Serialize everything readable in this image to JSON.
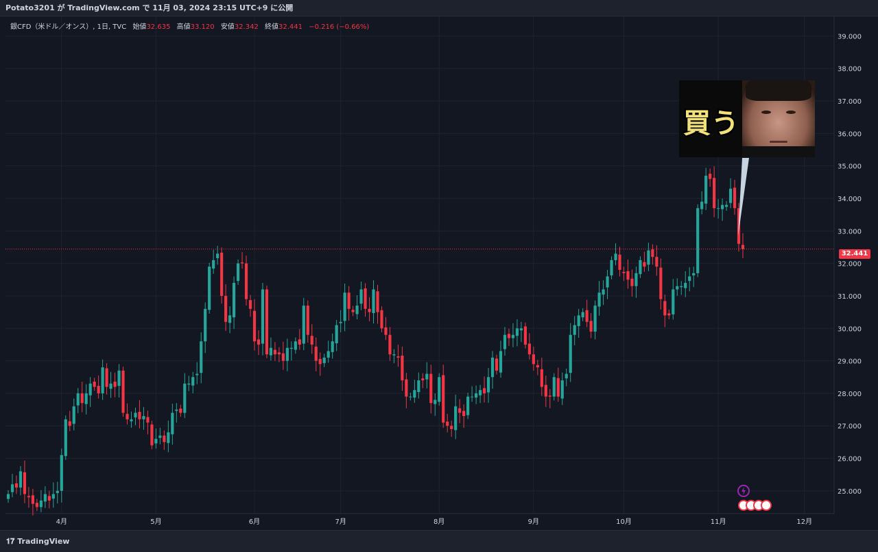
{
  "header": {
    "publish_line": "Potato3201 が TradingView.com で 11月 03, 2024 23:15 UTC+9 に公開"
  },
  "legend": {
    "symbol": "銀CFD（米ドル／オンス）, 1日, TVC",
    "open_label": "始値",
    "open": "32.635",
    "high_label": "高値",
    "high": "33.120",
    "low_label": "安値",
    "low": "32.342",
    "close_label": "終値",
    "close": "32.441",
    "change": "−0.216 (−0.66%)"
  },
  "price_tag": "32.441",
  "callout": {
    "text": "買う"
  },
  "footer": {
    "brand": "TradingView",
    "brand_icon": "tradingview-logo-icon"
  },
  "colors": {
    "up": "#26a69a",
    "down": "#f23645",
    "bg": "#131722",
    "grid": "#1f2330",
    "axis_text": "#d1d4dc"
  },
  "chart_data": {
    "type": "candlestick",
    "title": "銀CFD（米ドル／オンス）, 1日, TVC",
    "xlabel": "",
    "ylabel": "",
    "ylim": [
      24.3,
      39.6
    ],
    "y_ticks": [
      "25.000",
      "26.000",
      "27.000",
      "28.000",
      "29.000",
      "30.000",
      "31.000",
      "32.000",
      "33.000",
      "34.000",
      "35.000",
      "36.000",
      "37.000",
      "38.000",
      "39.000"
    ],
    "x_ticks": [
      {
        "label": "4月",
        "index": 13
      },
      {
        "label": "5月",
        "index": 36
      },
      {
        "label": "6月",
        "index": 60
      },
      {
        "label": "7月",
        "index": 81
      },
      {
        "label": "8月",
        "index": 105
      },
      {
        "label": "9月",
        "index": 128
      },
      {
        "label": "10月",
        "index": 150
      },
      {
        "label": "11月",
        "index": 173
      },
      {
        "label": "12月",
        "index": 194
      }
    ],
    "last_price": 32.441,
    "grid": true,
    "close_series": [
      24.9,
      25.2,
      25.1,
      25.6,
      24.9,
      24.8,
      24.6,
      24.5,
      24.7,
      24.9,
      24.7,
      24.9,
      25.0,
      26.1,
      27.2,
      27.0,
      27.6,
      28.0,
      27.7,
      28.0,
      28.3,
      28.2,
      28.0,
      28.8,
      28.2,
      28.3,
      28.2,
      28.7,
      27.4,
      27.2,
      27.2,
      27.4,
      27.2,
      27.3,
      27.1,
      26.4,
      26.6,
      26.7,
      26.5,
      26.8,
      27.4,
      27.5,
      27.4,
      28.3,
      28.3,
      28.5,
      28.6,
      29.6,
      30.6,
      31.9,
      32.1,
      32.3,
      31.0,
      30.2,
      30.4,
      31.4,
      32.0,
      32.0,
      30.9,
      30.6,
      29.6,
      29.5,
      31.2,
      29.2,
      29.4,
      29.2,
      29.2,
      29.0,
      29.4,
      29.4,
      29.6,
      29.5,
      30.7,
      29.8,
      29.5,
      29.0,
      28.9,
      29.1,
      29.3,
      29.6,
      30.1,
      30.2,
      31.1,
      30.6,
      30.5,
      30.7,
      31.2,
      30.6,
      30.5,
      31.2,
      30.5,
      30.0,
      29.8,
      29.2,
      29.2,
      29.1,
      28.4,
      27.9,
      27.9,
      28.1,
      28.4,
      28.4,
      28.6,
      27.7,
      27.8,
      28.5,
      27.1,
      27.0,
      26.9,
      27.6,
      27.4,
      27.3,
      27.9,
      27.9,
      28.0,
      28.1,
      28.0,
      28.5,
      29.1,
      28.7,
      29.3,
      29.8,
      29.7,
      29.8,
      30.0,
      30.0,
      29.5,
      29.2,
      28.9,
      28.8,
      28.2,
      27.9,
      27.9,
      28.5,
      27.9,
      28.4,
      28.6,
      29.8,
      30.1,
      30.4,
      30.5,
      30.2,
      29.9,
      30.7,
      31.1,
      31.2,
      31.6,
      32.1,
      32.3,
      31.8,
      31.7,
      31.5,
      31.3,
      31.7,
      32.1,
      31.9,
      32.4,
      32.2,
      31.9,
      30.9,
      30.4,
      30.4,
      31.2,
      31.3,
      31.3,
      31.4,
      31.6,
      31.7,
      33.7,
      33.9,
      34.7,
      34.6,
      33.7,
      33.7,
      33.8,
      33.8,
      34.3,
      33.7,
      32.6,
      32.441
    ],
    "visible_candles": 180
  }
}
